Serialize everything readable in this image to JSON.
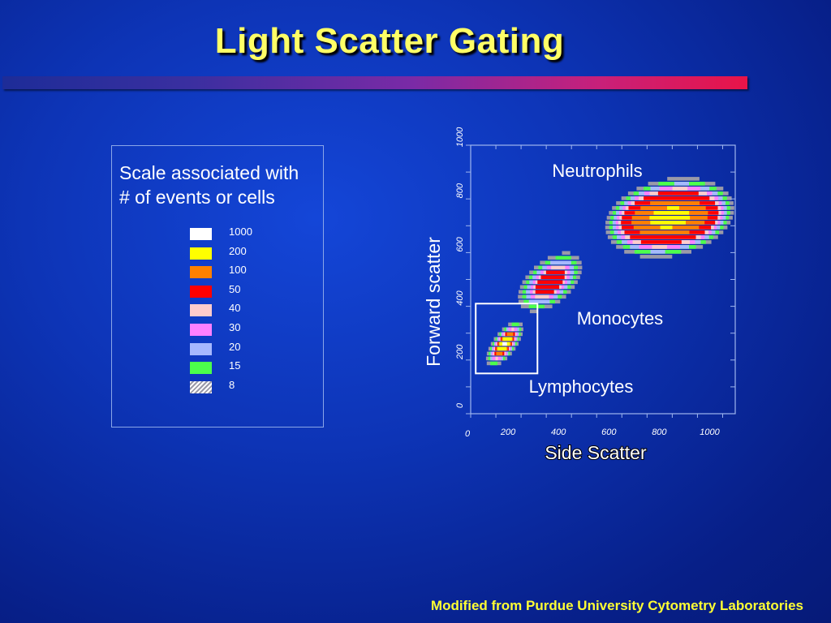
{
  "slide": {
    "title": "Light Scatter Gating",
    "credit": "Modified from Purdue University Cytometry Laboratories"
  },
  "legend": {
    "heading_line1": "Scale associated with",
    "heading_line2": "# of events or cells",
    "items": [
      {
        "label": "1000",
        "color": "#ffffff"
      },
      {
        "label": "200",
        "color": "#ffff00"
      },
      {
        "label": "100",
        "color": "#ff8000"
      },
      {
        "label": "50",
        "color": "#ff0000"
      },
      {
        "label": "40",
        "color": "#ffcccc"
      },
      {
        "label": "30",
        "color": "#ff80ff"
      },
      {
        "label": "20",
        "color": "#a6b8ff"
      },
      {
        "label": "15",
        "color": "#4cff4c"
      },
      {
        "label": "8",
        "color": "hatch"
      }
    ]
  },
  "chart_data": {
    "type": "heatmap",
    "xlabel": "Side Scatter",
    "ylabel": "Forward scatter",
    "xlim": [
      0,
      1050
    ],
    "ylim": [
      0,
      1000
    ],
    "x_ticks": [
      "0",
      "200",
      "400",
      "600",
      "800",
      "1000"
    ],
    "y_ticks": [
      "0",
      "200",
      "400",
      "600",
      "800",
      "1000"
    ],
    "populations": [
      {
        "name": "Lymphocytes",
        "center": [
          135,
          260
        ],
        "rings": [
          {
            "events": 8,
            "rx": 55,
            "ry": 85
          },
          {
            "events": 15,
            "rx": 48,
            "ry": 76
          },
          {
            "events": 20,
            "rx": 42,
            "ry": 68
          },
          {
            "events": 30,
            "rx": 37,
            "ry": 61
          },
          {
            "events": 40,
            "rx": 33,
            "ry": 55
          },
          {
            "events": 50,
            "rx": 29,
            "ry": 49
          },
          {
            "events": 100,
            "rx": 25,
            "ry": 42
          },
          {
            "events": 200,
            "rx": 21,
            "ry": 35
          },
          {
            "events": 1000,
            "rx": 9,
            "ry": 14
          }
        ]
      },
      {
        "name": "Monocytes",
        "center": [
          315,
          490
        ],
        "rings": [
          {
            "events": 8,
            "rx": 110,
            "ry": 110
          },
          {
            "events": 15,
            "rx": 95,
            "ry": 96
          },
          {
            "events": 20,
            "rx": 82,
            "ry": 84
          },
          {
            "events": 30,
            "rx": 68,
            "ry": 72
          },
          {
            "events": 40,
            "rx": 58,
            "ry": 62
          },
          {
            "events": 50,
            "rx": 50,
            "ry": 54
          }
        ]
      },
      {
        "name": "Neutrophils",
        "center": [
          790,
          730
        ],
        "rings": [
          {
            "events": 8,
            "rx": 250,
            "ry": 150
          },
          {
            "events": 15,
            "rx": 235,
            "ry": 138
          },
          {
            "events": 20,
            "rx": 222,
            "ry": 128
          },
          {
            "events": 30,
            "rx": 210,
            "ry": 118
          },
          {
            "events": 40,
            "rx": 200,
            "ry": 110
          },
          {
            "events": 50,
            "rx": 190,
            "ry": 100
          },
          {
            "events": 100,
            "rx": 150,
            "ry": 72
          },
          {
            "events": 200,
            "rx": 80,
            "ry": 38
          }
        ]
      }
    ],
    "gate": {
      "label": "Lymphocytes",
      "x": [
        20,
        265
      ],
      "y": [
        150,
        410
      ]
    },
    "annotations": [
      "Neutrophils",
      "Monocytes",
      "Lymphocytes"
    ]
  }
}
